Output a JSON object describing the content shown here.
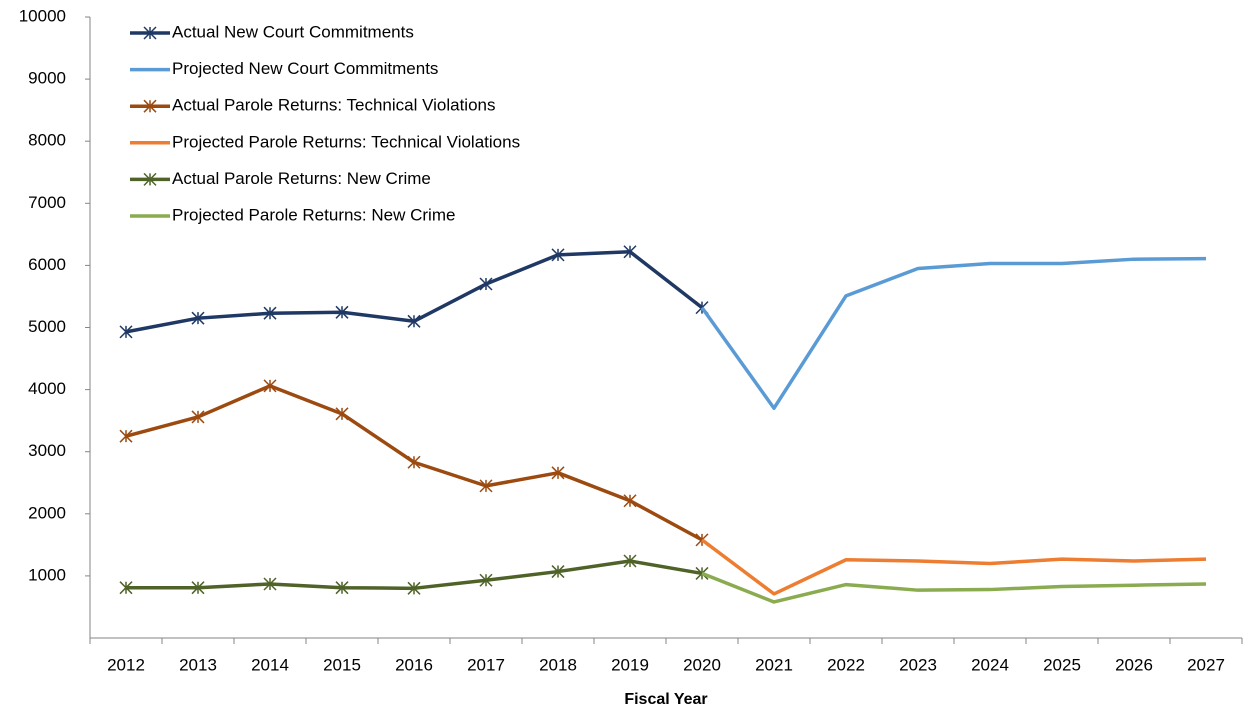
{
  "chart_data": {
    "type": "line",
    "x_label": "Fiscal Year",
    "categories": [
      "2012",
      "2013",
      "2014",
      "2015",
      "2016",
      "2017",
      "2018",
      "2019",
      "2020",
      "2021",
      "2022",
      "2023",
      "2024",
      "2025",
      "2026",
      "2027"
    ],
    "ylim": [
      0,
      10000
    ],
    "yticks": [
      1000,
      2000,
      3000,
      4000,
      5000,
      6000,
      7000,
      8000,
      9000,
      10000
    ],
    "legend": "top-left",
    "series": [
      {
        "name": "Actual New Court Commitments",
        "color": "#1f3864",
        "marker": "star",
        "values": [
          4930,
          5150,
          5230,
          5245,
          5100,
          5700,
          6170,
          6220,
          5320,
          null,
          null,
          null,
          null,
          null,
          null,
          null
        ]
      },
      {
        "name": "Projected New Court Commitments",
        "color": "#5b9bd5",
        "marker": "none",
        "values": [
          null,
          null,
          null,
          null,
          null,
          null,
          null,
          null,
          5320,
          3700,
          5510,
          5950,
          6030,
          6030,
          6100,
          6110
        ]
      },
      {
        "name": "Actual Parole Returns: Technical Violations",
        "color": "#9c4a10",
        "marker": "star",
        "values": [
          3250,
          3560,
          4060,
          3610,
          2830,
          2450,
          2660,
          2210,
          1580,
          null,
          null,
          null,
          null,
          null,
          null,
          null
        ]
      },
      {
        "name": "Projected Parole Returns: Technical Violations",
        "color": "#ed7d31",
        "marker": "none",
        "values": [
          null,
          null,
          null,
          null,
          null,
          null,
          null,
          null,
          1580,
          710,
          1260,
          1240,
          1200,
          1270,
          1240,
          1270
        ]
      },
      {
        "name": "Actual Parole Returns: New Crime",
        "color": "#4f6228",
        "marker": "star",
        "values": [
          810,
          810,
          870,
          810,
          800,
          930,
          1070,
          1240,
          1040,
          null,
          null,
          null,
          null,
          null,
          null,
          null
        ]
      },
      {
        "name": "Projected Parole Returns: New Crime",
        "color": "#8aab4f",
        "marker": "none",
        "values": [
          null,
          null,
          null,
          null,
          null,
          null,
          null,
          null,
          1040,
          580,
          860,
          770,
          780,
          830,
          850,
          870
        ]
      }
    ]
  }
}
